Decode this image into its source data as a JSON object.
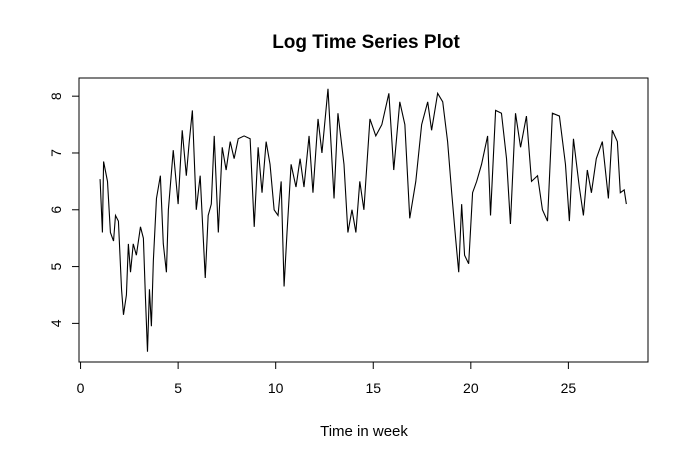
{
  "chart_data": {
    "type": "line",
    "title": "Log Time Series Plot",
    "x_label": "Time in week",
    "x": [
      1.0,
      1.12,
      1.18,
      1.38,
      1.53,
      1.69,
      1.79,
      1.94,
      2.1,
      2.2,
      2.35,
      2.45,
      2.56,
      2.7,
      2.86,
      3.07,
      3.22,
      3.32,
      3.43,
      3.53,
      3.63,
      3.73,
      3.89,
      4.09,
      4.24,
      4.4,
      4.5,
      4.75,
      5.0,
      5.21,
      5.42,
      5.57,
      5.73,
      5.93,
      6.13,
      6.39,
      6.54,
      6.7,
      6.85,
      7.06,
      7.26,
      7.46,
      7.67,
      7.87,
      8.08,
      8.38,
      8.69,
      8.9,
      9.1,
      9.3,
      9.51,
      9.71,
      9.92,
      10.12,
      10.28,
      10.43,
      10.58,
      10.79,
      11.04,
      11.25,
      11.45,
      11.71,
      11.91,
      12.17,
      12.37,
      12.68,
      12.99,
      13.19,
      13.5,
      13.7,
      13.91,
      14.11,
      14.31,
      14.52,
      14.83,
      15.13,
      15.44,
      15.8,
      16.05,
      16.36,
      16.62,
      16.87,
      17.18,
      17.48,
      17.79,
      17.99,
      18.3,
      18.56,
      18.81,
      19.02,
      19.22,
      19.38,
      19.53,
      19.68,
      19.89,
      20.09,
      20.3,
      20.55,
      20.86,
      21.01,
      21.27,
      21.57,
      21.83,
      22.03,
      22.29,
      22.55,
      22.85,
      23.11,
      23.42,
      23.67,
      23.93,
      24.18,
      24.54,
      24.85,
      25.05,
      25.26,
      25.56,
      25.77,
      25.97,
      26.18,
      26.43,
      26.74,
      27.05,
      27.25,
      27.51,
      27.66,
      27.86,
      27.97
    ],
    "series": [
      {
        "color": "#000000",
        "values": [
          6.54,
          5.6,
          6.85,
          6.5,
          5.6,
          5.45,
          5.9,
          5.8,
          4.6,
          4.15,
          4.5,
          5.4,
          4.9,
          5.4,
          5.2,
          5.7,
          5.5,
          4.5,
          3.5,
          4.6,
          3.95,
          5.1,
          6.2,
          6.6,
          5.4,
          4.9,
          6.0,
          7.05,
          6.1,
          7.4,
          6.6,
          7.2,
          7.75,
          6.0,
          6.6,
          4.8,
          5.9,
          6.1,
          7.3,
          5.6,
          7.1,
          6.7,
          7.2,
          6.9,
          7.25,
          7.3,
          7.25,
          5.7,
          7.1,
          6.3,
          7.2,
          6.8,
          6.0,
          5.9,
          6.5,
          4.65,
          5.6,
          6.8,
          6.4,
          6.9,
          6.4,
          7.3,
          6.3,
          7.6,
          7.0,
          8.13,
          6.2,
          7.7,
          6.8,
          5.6,
          6.0,
          5.6,
          6.5,
          6.0,
          7.6,
          7.3,
          7.5,
          8.05,
          6.7,
          7.9,
          7.5,
          5.85,
          6.5,
          7.5,
          7.9,
          7.4,
          8.05,
          7.9,
          7.2,
          6.3,
          5.5,
          4.9,
          6.1,
          5.2,
          5.05,
          6.3,
          6.5,
          6.8,
          7.3,
          5.9,
          7.75,
          7.7,
          6.9,
          5.75,
          7.7,
          7.1,
          7.65,
          6.5,
          6.6,
          6.0,
          5.8,
          7.7,
          7.65,
          6.8,
          5.8,
          7.25,
          6.4,
          5.9,
          6.7,
          6.3,
          6.9,
          7.2,
          6.2,
          7.4,
          7.2,
          6.3,
          6.35,
          6.1
        ]
      }
    ],
    "xlim": [
      -0.08,
      29.08
    ],
    "ylim": [
      3.32,
      8.32
    ],
    "xticks": [
      0,
      5,
      10,
      15,
      20,
      25
    ],
    "yticks": [
      4,
      5,
      6,
      7,
      8
    ]
  }
}
